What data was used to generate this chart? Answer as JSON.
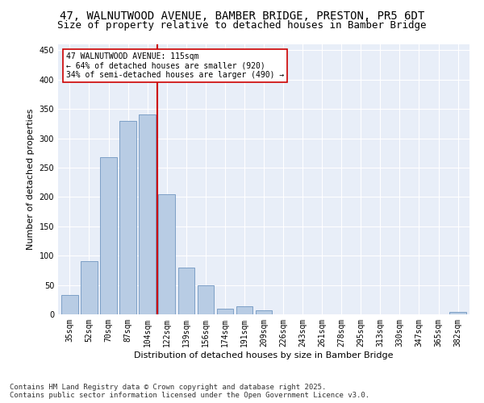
{
  "title": "47, WALNUTWOOD AVENUE, BAMBER BRIDGE, PRESTON, PR5 6DT",
  "subtitle": "Size of property relative to detached houses in Bamber Bridge",
  "xlabel": "Distribution of detached houses by size in Bamber Bridge",
  "ylabel": "Number of detached properties",
  "categories": [
    "35sqm",
    "52sqm",
    "70sqm",
    "87sqm",
    "104sqm",
    "122sqm",
    "139sqm",
    "156sqm",
    "174sqm",
    "191sqm",
    "209sqm",
    "226sqm",
    "243sqm",
    "261sqm",
    "278sqm",
    "295sqm",
    "313sqm",
    "330sqm",
    "347sqm",
    "365sqm",
    "382sqm"
  ],
  "values": [
    33,
    90,
    268,
    330,
    340,
    205,
    80,
    50,
    10,
    14,
    7,
    0,
    0,
    0,
    0,
    0,
    0,
    0,
    0,
    0,
    4
  ],
  "bar_color": "#b8cce4",
  "bar_edge_color": "#7096c0",
  "vline_x_index": 4,
  "vline_color": "#cc0000",
  "annotation_text": "47 WALNUTWOOD AVENUE: 115sqm\n← 64% of detached houses are smaller (920)\n34% of semi-detached houses are larger (490) →",
  "annotation_box_color": "#ffffff",
  "annotation_box_edge": "#cc0000",
  "annotation_fontsize": 7,
  "title_fontsize": 10,
  "subtitle_fontsize": 9,
  "ylabel_fontsize": 8,
  "xlabel_fontsize": 8,
  "tick_fontsize": 7,
  "footer_text": "Contains HM Land Registry data © Crown copyright and database right 2025.\nContains public sector information licensed under the Open Government Licence v3.0.",
  "footer_fontsize": 6.5,
  "background_color": "#ffffff",
  "plot_bg_color": "#e8eef8",
  "grid_color": "#ffffff",
  "ylim": [
    0,
    460
  ],
  "yticks": [
    0,
    50,
    100,
    150,
    200,
    250,
    300,
    350,
    400,
    450
  ]
}
